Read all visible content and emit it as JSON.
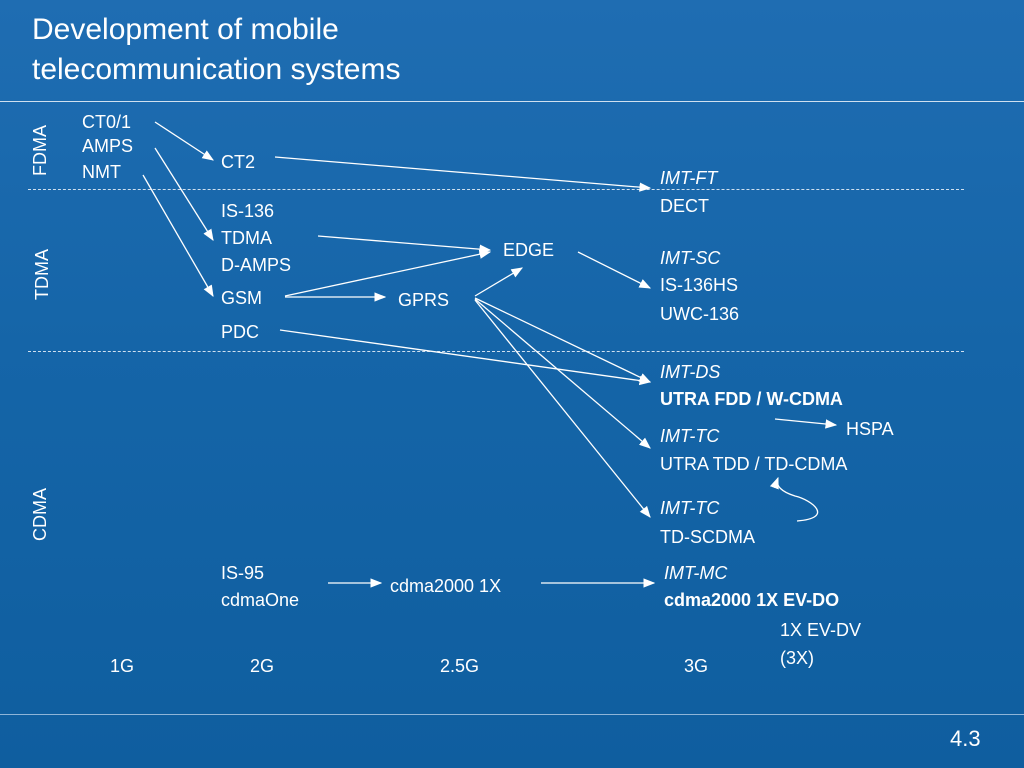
{
  "title": {
    "line1": "Development of mobile",
    "line2": "telecommunication systems"
  },
  "zones": {
    "fdma": "FDMA",
    "tdma": "TDMA",
    "cdma": "CDMA"
  },
  "gen1": {
    "ct01": "CT0/1",
    "amps": "AMPS",
    "nmt": "NMT"
  },
  "gen2": {
    "ct2": "CT2",
    "is136": "IS-136",
    "tdma": "TDMA",
    "damps": "D-AMPS",
    "gsm": "GSM",
    "pdc": "PDC",
    "is95": "IS-95",
    "cdmaone": "cdmaOne"
  },
  "gen25": {
    "gprs": "GPRS",
    "edge": "EDGE",
    "cdma2000_1x": "cdma2000 1X"
  },
  "gen3": {
    "imt_ft": "IMT-FT",
    "dect": "DECT",
    "imt_sc": "IMT-SC",
    "is136hs": "IS-136HS",
    "uwc136": "UWC-136",
    "imt_ds": "IMT-DS",
    "utra_fdd": "UTRA FDD / W-CDMA",
    "hspa": "HSPA",
    "imt_tc1": "IMT-TC",
    "utra_tdd": "UTRA TDD / TD-CDMA",
    "imt_tc2": "IMT-TC",
    "td_scdma": "TD-SCDMA",
    "imt_mc": "IMT-MC",
    "cdma2000_evdo": "cdma2000 1X EV-DO",
    "evdv": "1X EV-DV",
    "x3": "(3X)"
  },
  "generations": {
    "g1": "1G",
    "g2": "2G",
    "g25": "2.5G",
    "g3": "3G"
  },
  "page_number": "4.3"
}
